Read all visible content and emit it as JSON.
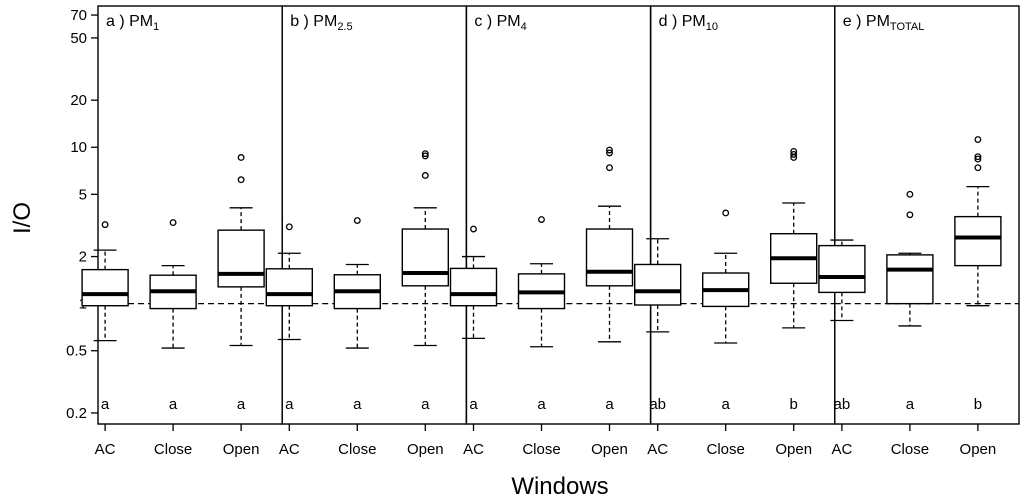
{
  "chart_data": {
    "type": "box",
    "ylabel": "I/O",
    "xlabel": "Windows",
    "y_scale": "log",
    "ylim": [
      0.17,
      80
    ],
    "y_ticks": [
      0.2,
      0.5,
      1,
      2,
      5,
      10,
      20,
      50,
      70
    ],
    "y_tick_labels": [
      "0.2",
      "0.5",
      "1",
      "2",
      "5",
      "10",
      "20",
      "50",
      "70"
    ],
    "reference_line": 1,
    "categories": [
      "AC",
      "Close",
      "Open"
    ],
    "panels": [
      {
        "prefix": "a ) PM",
        "subscript": "1",
        "boxes": [
          {
            "category": "AC",
            "whisker_low": 0.58,
            "q1": 0.97,
            "median": 1.15,
            "q3": 1.65,
            "whisker_high": 2.2,
            "outliers": [
              3.2
            ],
            "sig": "a"
          },
          {
            "category": "Close",
            "whisker_low": 0.52,
            "q1": 0.93,
            "median": 1.2,
            "q3": 1.52,
            "whisker_high": 1.75,
            "outliers": [
              3.3
            ],
            "sig": "a"
          },
          {
            "category": "Open",
            "whisker_low": 0.54,
            "q1": 1.28,
            "median": 1.55,
            "q3": 2.95,
            "whisker_high": 4.1,
            "outliers": [
              6.2,
              8.6
            ],
            "sig": "a"
          }
        ]
      },
      {
        "prefix": "b ) PM",
        "subscript": "2.5",
        "boxes": [
          {
            "category": "AC",
            "whisker_low": 0.59,
            "q1": 0.97,
            "median": 1.15,
            "q3": 1.67,
            "whisker_high": 2.1,
            "outliers": [
              3.1
            ],
            "sig": "a"
          },
          {
            "category": "Close",
            "whisker_low": 0.52,
            "q1": 0.93,
            "median": 1.2,
            "q3": 1.53,
            "whisker_high": 1.78,
            "outliers": [
              3.4
            ],
            "sig": "a"
          },
          {
            "category": "Open",
            "whisker_low": 0.54,
            "q1": 1.3,
            "median": 1.57,
            "q3": 3.0,
            "whisker_high": 4.1,
            "outliers": [
              6.6,
              8.8,
              9.1
            ],
            "sig": "a"
          }
        ]
      },
      {
        "prefix": "c ) PM",
        "subscript": "4",
        "boxes": [
          {
            "category": "AC",
            "whisker_low": 0.6,
            "q1": 0.97,
            "median": 1.15,
            "q3": 1.68,
            "whisker_high": 2.0,
            "outliers": [
              3.0
            ],
            "sig": "a"
          },
          {
            "category": "Close",
            "whisker_low": 0.53,
            "q1": 0.93,
            "median": 1.18,
            "q3": 1.55,
            "whisker_high": 1.8,
            "outliers": [
              3.45
            ],
            "sig": "a"
          },
          {
            "category": "Open",
            "whisker_low": 0.57,
            "q1": 1.3,
            "median": 1.6,
            "q3": 3.0,
            "whisker_high": 4.2,
            "outliers": [
              7.4,
              9.2,
              9.6
            ],
            "sig": "a"
          }
        ]
      },
      {
        "prefix": "d ) PM",
        "subscript": "10",
        "boxes": [
          {
            "category": "AC",
            "whisker_low": 0.66,
            "q1": 0.98,
            "median": 1.2,
            "q3": 1.78,
            "whisker_high": 2.6,
            "outliers": [],
            "sig": "ab"
          },
          {
            "category": "Close",
            "whisker_low": 0.56,
            "q1": 0.96,
            "median": 1.22,
            "q3": 1.57,
            "whisker_high": 2.1,
            "outliers": [
              3.8
            ],
            "sig": "a"
          },
          {
            "category": "Open",
            "whisker_low": 0.7,
            "q1": 1.35,
            "median": 1.95,
            "q3": 2.8,
            "whisker_high": 4.4,
            "outliers": [
              8.6,
              9.0,
              9.4
            ],
            "sig": "b"
          }
        ]
      },
      {
        "prefix": "e ) PM",
        "subscript": "TOTAL",
        "boxes": [
          {
            "category": "AC",
            "whisker_low": 0.78,
            "q1": 1.18,
            "median": 1.48,
            "q3": 2.35,
            "whisker_high": 2.55,
            "outliers": [],
            "sig": "ab"
          },
          {
            "category": "Close",
            "whisker_low": 0.72,
            "q1": 1.0,
            "median": 1.65,
            "q3": 2.05,
            "whisker_high": 2.1,
            "outliers": [
              3.7,
              5.0
            ],
            "sig": "a"
          },
          {
            "category": "Open",
            "whisker_low": 0.97,
            "q1": 1.75,
            "median": 2.65,
            "q3": 3.6,
            "whisker_high": 5.6,
            "outliers": [
              7.4,
              8.4,
              8.7,
              11.2
            ],
            "sig": "b"
          }
        ]
      }
    ]
  }
}
